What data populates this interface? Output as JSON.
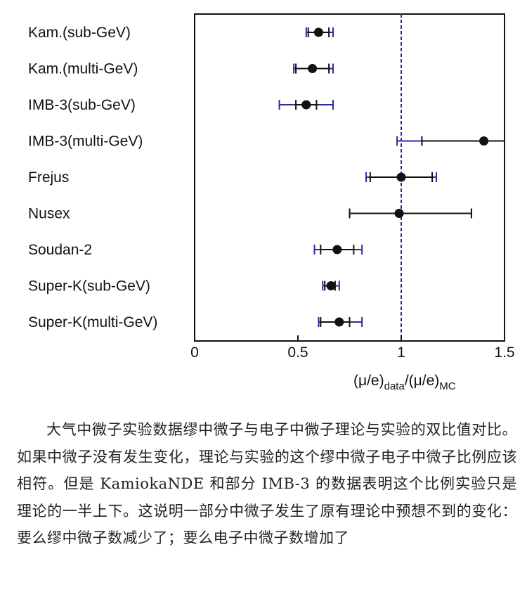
{
  "chart_data": {
    "type": "scatter",
    "categories": [
      "Kam.(sub-GeV)",
      "Kam.(multi-GeV)",
      "IMB-3(sub-GeV)",
      "IMB-3(multi-GeV)",
      "Frejus",
      "Nusex",
      "Soudan-2",
      "Super-K(sub-GeV)",
      "Super-K(multi-GeV)"
    ],
    "points": [
      {
        "label": "Kam.(sub-GeV)",
        "value": 0.6,
        "stat_low": 0.55,
        "stat_high": 0.65,
        "total_low": 0.54,
        "total_high": 0.67
      },
      {
        "label": "Kam.(multi-GeV)",
        "value": 0.57,
        "stat_low": 0.49,
        "stat_high": 0.65,
        "total_low": 0.48,
        "total_high": 0.67
      },
      {
        "label": "IMB-3(sub-GeV)",
        "value": 0.54,
        "stat_low": 0.49,
        "stat_high": 0.59,
        "total_low": 0.41,
        "total_high": 0.67
      },
      {
        "label": "IMB-3(multi-GeV)",
        "value": 1.4,
        "stat_low": 1.1,
        "stat_high": 1.5,
        "total_low": 0.98,
        "total_high": 1.5
      },
      {
        "label": "Frejus",
        "value": 1.0,
        "stat_low": 0.85,
        "stat_high": 1.15,
        "total_low": 0.83,
        "total_high": 1.17
      },
      {
        "label": "Nusex",
        "value": 0.99,
        "stat_low": 0.75,
        "stat_high": 1.34,
        "total_low": 0.75,
        "total_high": 1.34
      },
      {
        "label": "Soudan-2",
        "value": 0.69,
        "stat_low": 0.61,
        "stat_high": 0.77,
        "total_low": 0.58,
        "total_high": 0.81
      },
      {
        "label": "Super-K(sub-GeV)",
        "value": 0.66,
        "stat_low": 0.63,
        "stat_high": 0.68,
        "total_low": 0.62,
        "total_high": 0.7
      },
      {
        "label": "Super-K(multi-GeV)",
        "value": 0.7,
        "stat_low": 0.61,
        "stat_high": 0.75,
        "total_low": 0.6,
        "total_high": 0.81
      }
    ],
    "xlim": [
      0,
      1.5
    ],
    "xticks": [
      "0",
      "0.5",
      "1",
      "1.5"
    ],
    "xtick_values": [
      0,
      0.5,
      1,
      1.5
    ],
    "reference_line": 1,
    "xlabel": {
      "pre": "(μ/e)",
      "sub1": "data",
      "mid": "/(μ/e)",
      "sub2": "MC"
    },
    "colors": {
      "point": "#111111",
      "stat_error": "#111111",
      "total_error": "#2b2b9e",
      "reference_line": "#2b2b9e",
      "axis": "#111111"
    }
  },
  "caption": "大气中微子实验数据缪中微子与电子中微子理论与实验的双比值对比。如果中微子没有发生变化，理论与实验的这个缪中微子电子中微子比例应该相符。但是 KamiokaNDE 和部分 IMB-3 的数据表明这个比例实验只是理论的一半上下。这说明一部分中微子发生了原有理论中预想不到的变化：要么缪中微子数减少了；要么电子中微子数增加了"
}
